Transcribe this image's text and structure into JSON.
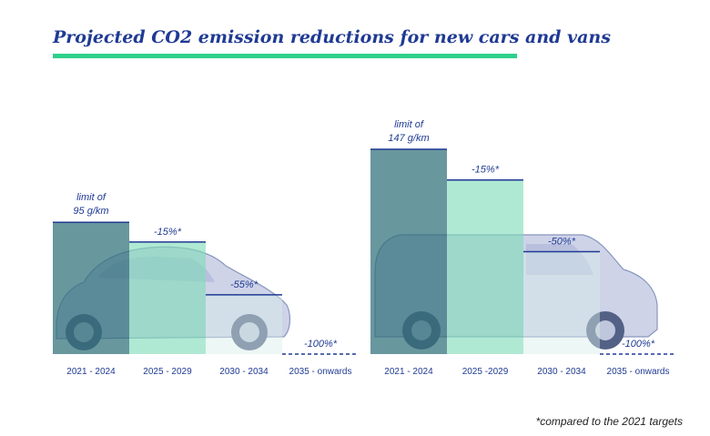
{
  "title": "Projected CO2 emission reductions for new cars and vans",
  "footnote": "*compared to the 2021 targets",
  "colors": {
    "title": "#1f3a93",
    "rule": "#2ed08a",
    "bar_dark": "#2f6f79",
    "bar_mint": "#7fdcb8",
    "bar_light": "#d6ede8",
    "line": "#1f3a93"
  },
  "chart_data": [
    {
      "type": "bar",
      "panel": "cars",
      "background_image": "car",
      "categories": [
        "2021 - 2024",
        "2025 - 2029",
        "2030 - 2034",
        "2035 - onwards"
      ],
      "values": [
        95,
        80.75,
        42.75,
        0
      ],
      "labels": [
        "limit of 95 g/km",
        "-15%*",
        "-55%*",
        "-100%*"
      ],
      "unit": "g/km"
    },
    {
      "type": "bar",
      "panel": "vans",
      "background_image": "van",
      "categories": [
        "2021 - 2024",
        "2025 -2029",
        "2030 - 2034",
        "2035 - onwards"
      ],
      "values": [
        147,
        124.95,
        73.5,
        0
      ],
      "labels": [
        "limit of 147 g/km",
        "-15%*",
        "-50%*",
        "-100%*"
      ],
      "unit": "g/km"
    }
  ]
}
